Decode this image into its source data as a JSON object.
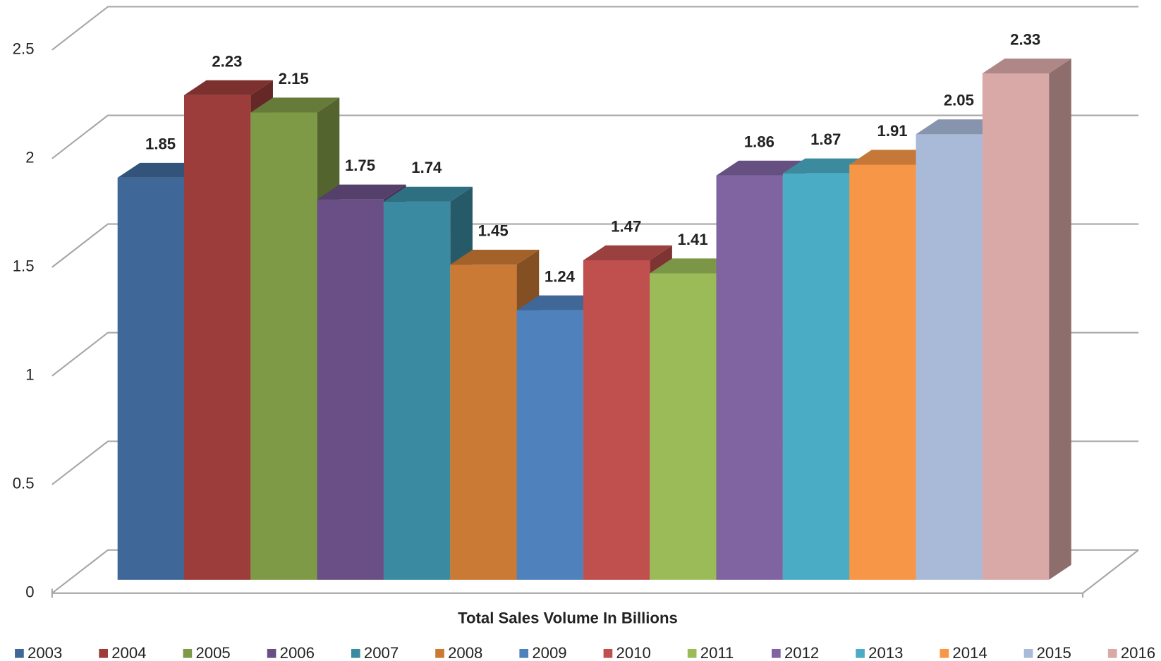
{
  "chart_data": {
    "type": "bar3d",
    "x_label": "Total Sales Volume In Billions",
    "ylim": [
      0,
      2.5
    ],
    "yticks": [
      0,
      0.5,
      1,
      1.5,
      2,
      2.5
    ],
    "grid": true,
    "legend": "bottom",
    "series": [
      {
        "name": "2003",
        "color": "#3f6899",
        "values": [
          1.85
        ]
      },
      {
        "name": "2004",
        "color": "#9c3d3b",
        "values": [
          2.23
        ]
      },
      {
        "name": "2005",
        "color": "#7f9a47",
        "values": [
          2.15
        ]
      },
      {
        "name": "2006",
        "color": "#6a4f86",
        "values": [
          1.75
        ]
      },
      {
        "name": "2007",
        "color": "#3a8ba2",
        "values": [
          1.74
        ]
      },
      {
        "name": "2008",
        "color": "#cb7a35",
        "values": [
          1.45
        ]
      },
      {
        "name": "2009",
        "color": "#4f81bd",
        "values": [
          1.24
        ]
      },
      {
        "name": "2010",
        "color": "#c0504d",
        "values": [
          1.47
        ]
      },
      {
        "name": "2011",
        "color": "#9bbb59",
        "values": [
          1.41
        ]
      },
      {
        "name": "2012",
        "color": "#8064a2",
        "values": [
          1.86
        ]
      },
      {
        "name": "2013",
        "color": "#4bacc6",
        "values": [
          1.87
        ]
      },
      {
        "name": "2014",
        "color": "#f79646",
        "values": [
          1.91
        ]
      },
      {
        "name": "2015",
        "color": "#a9b9d8",
        "values": [
          2.05
        ]
      },
      {
        "name": "2016",
        "color": "#d9a9a8",
        "values": [
          2.33
        ]
      }
    ]
  }
}
